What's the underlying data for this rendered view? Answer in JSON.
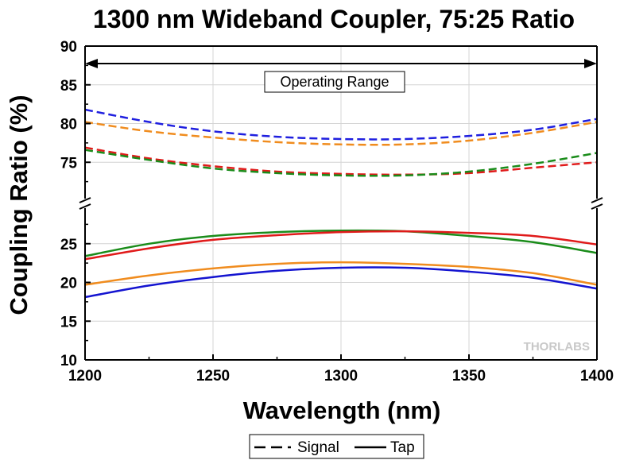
{
  "chart_data": {
    "type": "line",
    "title": "1300 nm Wideband Coupler, 75:25 Ratio",
    "xlabel": "Wavelength (nm)",
    "ylabel": "Coupling Ratio (%)",
    "xlim": [
      1200,
      1400
    ],
    "ylim": [
      10,
      90
    ],
    "y_axis_break": [
      28,
      71
    ],
    "xticks": [
      1200,
      1250,
      1300,
      1350,
      1400
    ],
    "yticks": [
      10,
      15,
      20,
      25,
      75,
      80,
      85,
      90
    ],
    "grid": true,
    "legend_position": "bottom-center",
    "annotation": "Operating Range",
    "annotation_range": [
      1200,
      1400
    ],
    "watermark": "THORLABS",
    "legend": [
      {
        "label": "Signal",
        "style": "dashed"
      },
      {
        "label": "Tap",
        "style": "solid"
      }
    ],
    "x": [
      1200,
      1225,
      1250,
      1275,
      1300,
      1325,
      1350,
      1375,
      1400
    ],
    "series": [
      {
        "style": "dashed",
        "color": "#1f1fdf",
        "values": [
          81.8,
          80.2,
          79.0,
          78.3,
          78.0,
          78.0,
          78.4,
          79.2,
          80.6
        ]
      },
      {
        "style": "dashed",
        "color": "#f08c1e",
        "values": [
          80.2,
          79.0,
          78.2,
          77.6,
          77.3,
          77.3,
          77.8,
          78.8,
          80.2
        ]
      },
      {
        "style": "dashed",
        "color": "#e01a1a",
        "values": [
          76.9,
          75.5,
          74.5,
          73.8,
          73.5,
          73.4,
          73.6,
          74.3,
          75.0
        ]
      },
      {
        "style": "dashed",
        "color": "#1a8c1a",
        "values": [
          76.6,
          75.3,
          74.2,
          73.6,
          73.3,
          73.3,
          73.8,
          74.8,
          76.2
        ]
      },
      {
        "style": "solid",
        "color": "#1a8c1a",
        "values": [
          23.4,
          25.0,
          26.0,
          26.5,
          26.7,
          26.6,
          26.0,
          25.2,
          23.8
        ]
      },
      {
        "style": "solid",
        "color": "#e01a1a",
        "values": [
          23.0,
          24.4,
          25.5,
          26.1,
          26.5,
          26.6,
          26.4,
          26.0,
          24.9
        ]
      },
      {
        "style": "solid",
        "color": "#f08c1e",
        "values": [
          19.7,
          20.9,
          21.8,
          22.4,
          22.6,
          22.4,
          22.0,
          21.2,
          19.7
        ]
      },
      {
        "style": "solid",
        "color": "#1414d0",
        "values": [
          18.1,
          19.6,
          20.7,
          21.5,
          21.9,
          21.9,
          21.4,
          20.6,
          19.2
        ]
      }
    ]
  }
}
